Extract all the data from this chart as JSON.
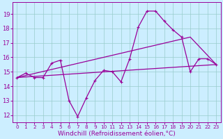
{
  "bg_color": "#cceeff",
  "line_color": "#990099",
  "grid_color": "#99cccc",
  "xlabel": "Windchill (Refroidissement éolien,°C)",
  "xlabel_fontsize": 6.5,
  "yticks": [
    12,
    13,
    14,
    15,
    16,
    17,
    18,
    19
  ],
  "xticks": [
    0,
    1,
    2,
    3,
    4,
    5,
    6,
    7,
    8,
    9,
    10,
    11,
    12,
    13,
    14,
    15,
    16,
    17,
    18,
    19,
    20,
    21,
    22,
    23
  ],
  "ylim": [
    11.5,
    19.8
  ],
  "xlim": [
    -0.5,
    23.5
  ],
  "series1_x": [
    0,
    1,
    2,
    3,
    4,
    5,
    6,
    7,
    8,
    9,
    10,
    11,
    12,
    13,
    14,
    15,
    16,
    17,
    18,
    19,
    20,
    21,
    22,
    23
  ],
  "series1_y": [
    14.6,
    14.9,
    14.6,
    14.6,
    15.6,
    15.8,
    13.0,
    11.9,
    13.2,
    14.4,
    15.1,
    15.0,
    14.3,
    15.9,
    18.1,
    19.2,
    19.2,
    18.5,
    17.9,
    17.4,
    15.0,
    15.9,
    15.9,
    15.5
  ],
  "series2_x": [
    0,
    23
  ],
  "series2_y": [
    14.6,
    15.5
  ],
  "series3_x": [
    0,
    20,
    23
  ],
  "series3_y": [
    14.6,
    17.4,
    15.5
  ],
  "marker_size": 3,
  "linewidth": 0.9
}
